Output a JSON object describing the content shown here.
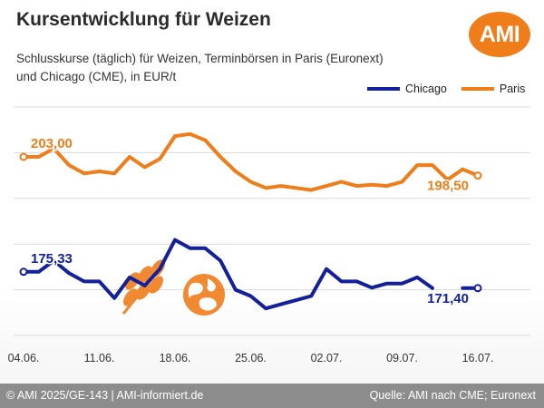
{
  "header": {
    "title": "Kursentwicklung für Weizen",
    "subtitle_line1": "Schlusskurse (täglich) für Weizen, Terminbörsen in Paris (Euronext)",
    "subtitle_line2": "und Chicago (CME), in EUR/t",
    "logo_text": "AMI"
  },
  "footer": {
    "left": "© AMI 2025/GE-143 | AMI-informiert.de",
    "right": "Quelle: AMI nach CME; Euronext"
  },
  "colors": {
    "paris": "#ef7d1a",
    "chicago": "#14209a",
    "grid": "#d9d9d9",
    "watermark": "#ef7d1a"
  },
  "icons": [
    "wheat-icon",
    "globe-icon"
  ],
  "chart_data": {
    "type": "line",
    "title": "Kursentwicklung für Weizen",
    "ylabel": "EUR/t",
    "ylim": [
      160,
      215
    ],
    "grid": "horizontal",
    "legend_position": "top-right",
    "x_ticks": [
      "04.06.",
      "11.06.",
      "18.06.",
      "25.06.",
      "02.07.",
      "09.07.",
      "16.07."
    ],
    "x": [
      "04.06.",
      "05.06.",
      "06.06.",
      "09.06.",
      "10.06.",
      "11.06.",
      "12.06.",
      "13.06.",
      "16.06.",
      "17.06.",
      "18.06.",
      "19.06.",
      "20.06.",
      "23.06.",
      "24.06.",
      "25.06.",
      "26.06.",
      "27.06.",
      "30.06.",
      "01.07.",
      "02.07.",
      "03.07.",
      "04.07.",
      "07.07.",
      "08.07.",
      "09.07.",
      "10.07.",
      "11.07.",
      "14.07.",
      "15.07.",
      "16.07."
    ],
    "series": [
      {
        "name": "Chicago",
        "color": "#14209a",
        "values": [
          175.33,
          175.33,
          178.0,
          175.0,
          173.0,
          173.0,
          169.0,
          174.0,
          172.0,
          176.0,
          183.0,
          181.0,
          181.0,
          178.0,
          171.0,
          169.5,
          166.5,
          167.5,
          168.5,
          169.5,
          176.0,
          173.0,
          173.0,
          171.5,
          172.5,
          172.5,
          174.0,
          171.4,
          null,
          171.4,
          171.4
        ],
        "labels": [
          {
            "index": 0,
            "text": "175,33"
          },
          {
            "index": 30,
            "text": "171,40"
          }
        ]
      },
      {
        "name": "Paris",
        "color": "#ef7d1a",
        "values": [
          203.0,
          203.0,
          205.0,
          201.0,
          199.0,
          199.5,
          199.0,
          203.0,
          200.5,
          202.5,
          208.0,
          208.5,
          207.0,
          203.0,
          199.5,
          197.0,
          195.5,
          196.0,
          195.5,
          195.0,
          196.0,
          197.0,
          196.0,
          196.3,
          196.0,
          197.0,
          201.0,
          201.0,
          197.5,
          200.0,
          198.5
        ],
        "labels": [
          {
            "index": 0,
            "text": "203,00"
          },
          {
            "index": 30,
            "text": "198,50"
          }
        ]
      }
    ]
  }
}
